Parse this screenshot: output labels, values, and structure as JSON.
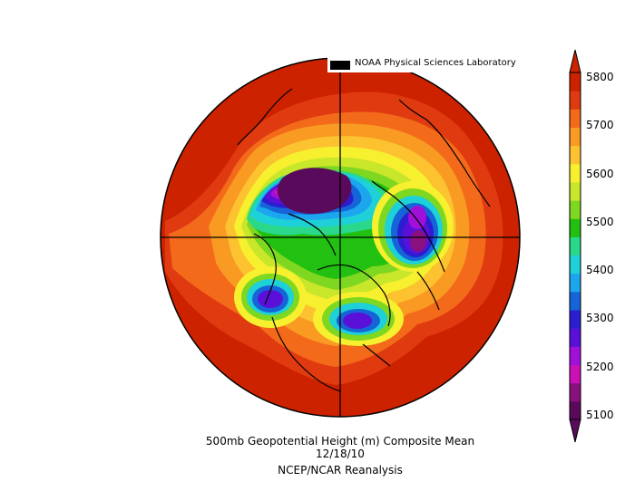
{
  "credit": "NOAA Physical Sciences Laboratory",
  "caption": {
    "title": "500mb Geopotential Height (m) Composite Mean",
    "date": "12/18/10",
    "source": "NCEP/NCAR Reanalysis"
  },
  "colorbar": {
    "labels": [
      "5800",
      "5700",
      "5600",
      "5500",
      "5400",
      "5300",
      "5200",
      "5100"
    ],
    "colors": [
      "#cc2200",
      "#e03a10",
      "#f26a1a",
      "#f99a22",
      "#fcc230",
      "#f6f02e",
      "#c8e62a",
      "#7ed720",
      "#22c010",
      "#2ad88c",
      "#1ed0d8",
      "#1ba6ee",
      "#1565d8",
      "#2a1ed0",
      "#5a10d8",
      "#a010d8",
      "#cc10b8",
      "#8a1080",
      "#5a0a5a"
    ]
  },
  "map": {
    "projection": "north polar stereographic",
    "field": "500mb geopotential height",
    "features": [
      "low-over-canada-arctic",
      "low-over-scandinavia",
      "low-over-eastern-north-america",
      "low-over-north-pacific"
    ]
  }
}
